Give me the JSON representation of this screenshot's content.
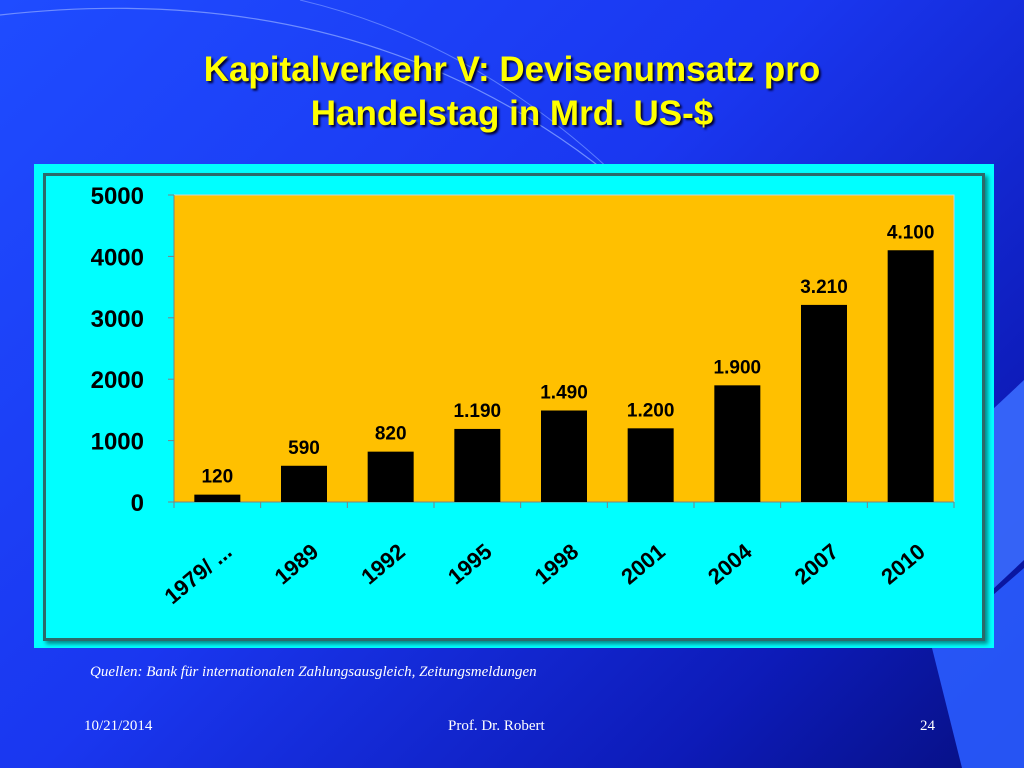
{
  "slide": {
    "title_line1": "Kapitalverkehr V: Devisenumsatz pro",
    "title_line2": "Handelstag in Mrd. US-$",
    "source": "Quellen: Bank für internationalen Zahlungsausgleich, Zeitungsmeldungen",
    "footer_date": "10/21/2014",
    "footer_author": "Prof. Dr. Robert",
    "footer_page": "24"
  },
  "colors": {
    "background": "#1f4cff",
    "title": "#ffff00",
    "frame": "#00ffff",
    "plot_area": "#ffc000",
    "bar": "#000000"
  },
  "chart_data": {
    "type": "bar",
    "categories": [
      "1979/ ...",
      "1989",
      "1992",
      "1995",
      "1998",
      "2001",
      "2004",
      "2007",
      "2010"
    ],
    "values": [
      120,
      590,
      820,
      1190,
      1490,
      1200,
      1900,
      3210,
      4100
    ],
    "data_labels": [
      "120",
      "590",
      "820",
      "1.190",
      "1.490",
      "1.200",
      "1.900",
      "3.210",
      "4.100"
    ],
    "ylim": [
      0,
      5000
    ],
    "y_ticks": [
      0,
      1000,
      2000,
      3000,
      4000,
      5000
    ],
    "y_tick_labels": [
      "0",
      "1000",
      "2000",
      "3000",
      "4000",
      "5000"
    ],
    "grid": false,
    "legend": "none",
    "xlabel": "",
    "ylabel": ""
  }
}
